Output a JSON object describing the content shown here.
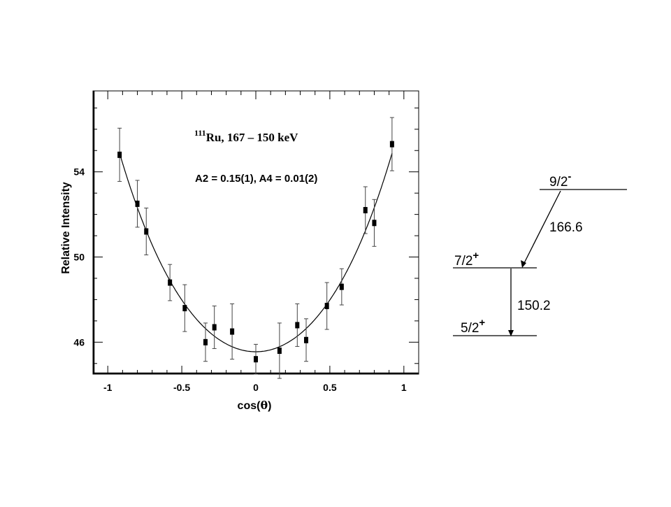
{
  "chart_data": {
    "type": "scatter",
    "title_prefix": "111",
    "title_main": "Ru,  167 – 150 keV",
    "annotation": "A2 = 0.15(1), A4 = 0.01(2)",
    "xlabel_pre": "cos(",
    "xlabel_sym": "θ",
    "xlabel_post": ")",
    "ylabel": "Relative Intensity",
    "xlim": [
      -1.1,
      1.1
    ],
    "ylim": [
      44.5,
      57.8
    ],
    "x_ticks": [
      "-1",
      "-0.5",
      "0",
      "0.5",
      "1"
    ],
    "x_tick_values": [
      -1,
      -0.5,
      0,
      0.5,
      1
    ],
    "y_ticks": [
      "46",
      "50",
      "54"
    ],
    "y_tick_values": [
      46,
      50,
      54
    ],
    "points": [
      {
        "x": -0.92,
        "y": 54.8,
        "err": 1.25
      },
      {
        "x": -0.8,
        "y": 52.5,
        "err": 1.1
      },
      {
        "x": -0.74,
        "y": 51.2,
        "err": 1.1
      },
      {
        "x": -0.58,
        "y": 48.8,
        "err": 0.85
      },
      {
        "x": -0.48,
        "y": 47.6,
        "err": 1.1
      },
      {
        "x": -0.34,
        "y": 46.0,
        "err": 0.9
      },
      {
        "x": -0.28,
        "y": 46.7,
        "err": 1.0
      },
      {
        "x": -0.16,
        "y": 46.5,
        "err": 1.3
      },
      {
        "x": 0.0,
        "y": 45.2,
        "err": 0.7
      },
      {
        "x": 0.16,
        "y": 45.6,
        "err": 1.3
      },
      {
        "x": 0.28,
        "y": 46.8,
        "err": 1.0
      },
      {
        "x": 0.34,
        "y": 46.1,
        "err": 1.0
      },
      {
        "x": 0.48,
        "y": 47.7,
        "err": 1.1
      },
      {
        "x": 0.58,
        "y": 48.6,
        "err": 0.85
      },
      {
        "x": 0.74,
        "y": 52.2,
        "err": 1.1
      },
      {
        "x": 0.8,
        "y": 51.6,
        "err": 1.1
      },
      {
        "x": 0.92,
        "y": 55.3,
        "err": 1.25
      }
    ],
    "fit": {
      "A0": 45.55,
      "A2": 0.15,
      "A4": 0.01
    }
  },
  "level_scheme": {
    "levels": [
      {
        "spin": "9/2",
        "parity": "-"
      },
      {
        "spin": "7/2",
        "parity": "+"
      },
      {
        "spin": "5/2",
        "parity": "+"
      }
    ],
    "transitions": [
      {
        "energy": "166.6"
      },
      {
        "energy": "150.2"
      }
    ]
  },
  "colors": {
    "ink": "#000000",
    "background": "#ffffff"
  }
}
